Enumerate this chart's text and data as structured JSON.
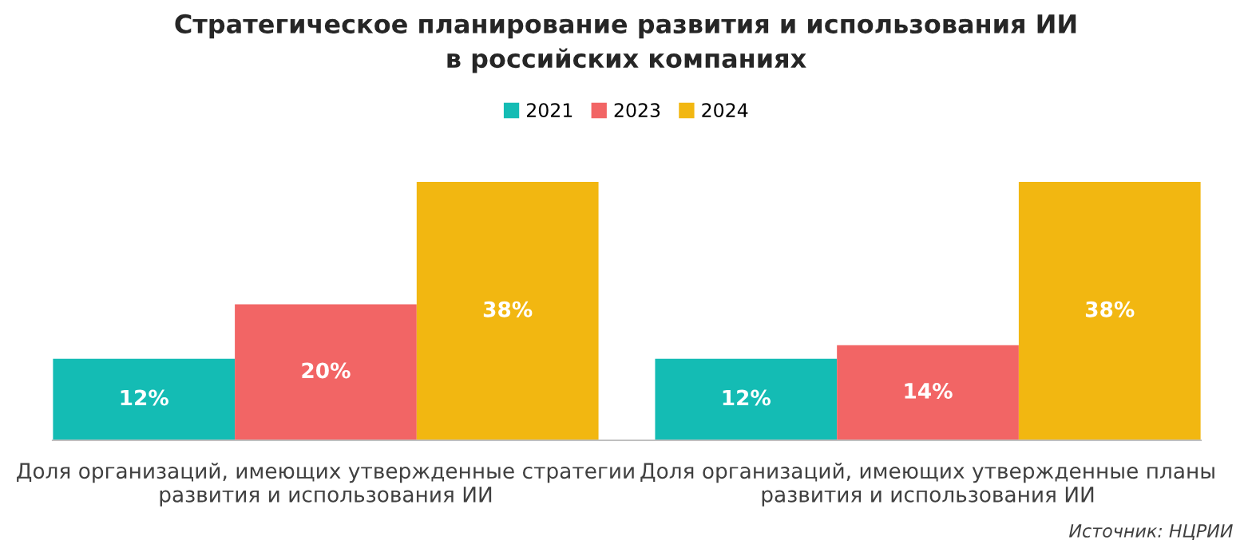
{
  "chart_data": {
    "type": "bar",
    "title": "Стратегическое планирование развития и использования ИИ\nв российских компаниях",
    "categories": [
      "Доля организаций, имеющих утвержденные стратегии\nразвития и использования ИИ",
      "Доля организаций, имеющих утвержденные планы\nразвития и использования ИИ"
    ],
    "series": [
      {
        "name": "2021",
        "color": "#14bcb4",
        "values": [
          12,
          12
        ],
        "value_labels": [
          "12%",
          "12%"
        ]
      },
      {
        "name": "2023",
        "color": "#f26565",
        "values": [
          20,
          14
        ],
        "value_labels": [
          "20%",
          "14%"
        ]
      },
      {
        "name": "2024",
        "color": "#f2b711",
        "values": [
          38,
          38
        ],
        "value_labels": [
          "38%",
          "38%"
        ]
      }
    ],
    "legend": "top",
    "grid": false,
    "annotations": [
      "Источник: НЦРИИ"
    ]
  }
}
